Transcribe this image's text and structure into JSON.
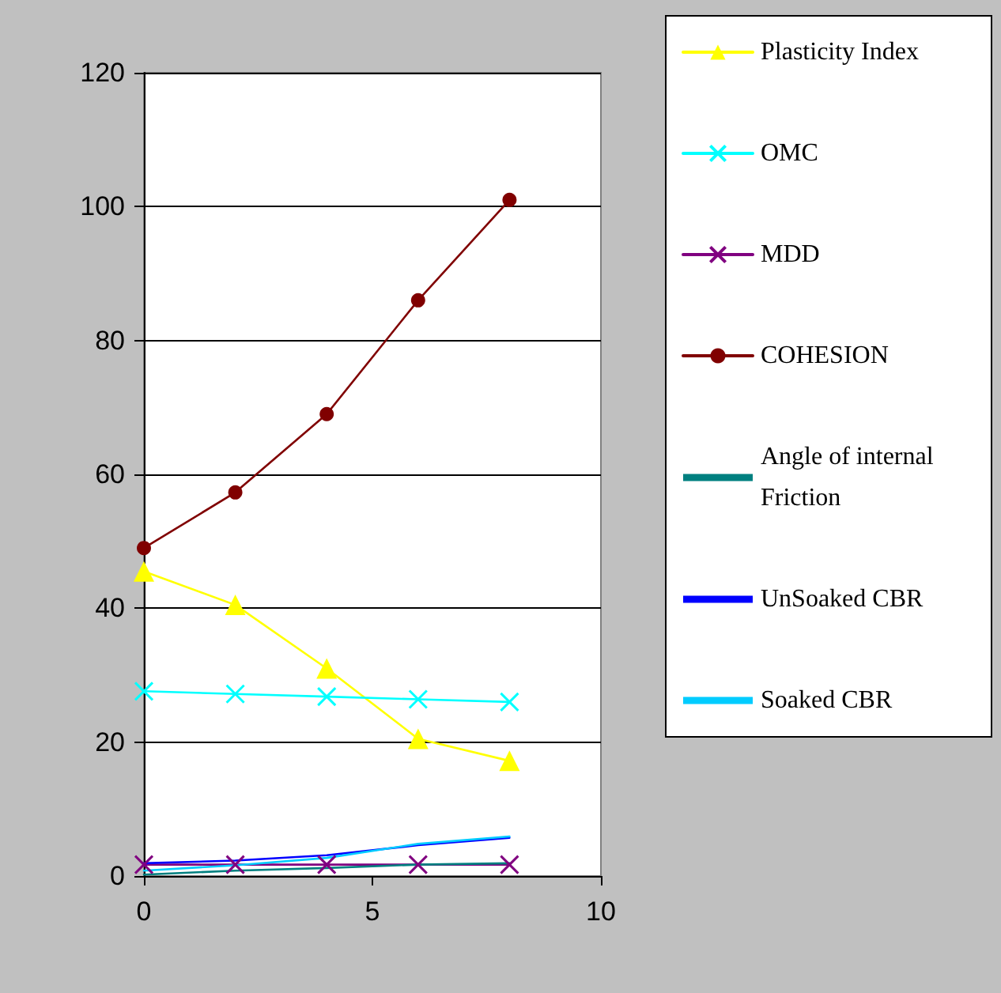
{
  "chart_data": {
    "type": "line",
    "x": [
      0,
      2,
      4,
      6,
      8
    ],
    "series": [
      {
        "name": "Plasticity Index",
        "color": "#ffff00",
        "marker": "triangle",
        "values": [
          45.5,
          40.5,
          31,
          20.5,
          17.2
        ]
      },
      {
        "name": "OMC",
        "color": "#00ffff",
        "marker": "cross",
        "values": [
          27.6,
          27.2,
          26.8,
          26.4,
          26.0
        ]
      },
      {
        "name": "MDD",
        "color": "#800080",
        "marker": "cross",
        "values": [
          1.7,
          1.7,
          1.7,
          1.7,
          1.7
        ]
      },
      {
        "name": "COHESION",
        "color": "#800000",
        "marker": "circle",
        "values": [
          49,
          57.3,
          69,
          86,
          101
        ]
      },
      {
        "name": "Angle of internal Friction",
        "color": "#008080",
        "marker": "none",
        "values": [
          0.2,
          0.8,
          1.2,
          1.7,
          1.9
        ]
      },
      {
        "name": "UnSoaked CBR",
        "color": "#0000ff",
        "marker": "none",
        "values": [
          1.9,
          2.3,
          3.1,
          4.6,
          5.7
        ]
      },
      {
        "name": "Soaked CBR",
        "color": "#00ccff",
        "marker": "none",
        "values": [
          0.8,
          1.6,
          2.7,
          4.8,
          5.9
        ]
      }
    ],
    "xlim": [
      0,
      10
    ],
    "xticks": [
      0,
      5,
      10
    ],
    "ylim": [
      0,
      120
    ],
    "yticks": [
      0,
      20,
      40,
      60,
      80,
      100,
      120
    ],
    "grid": "y",
    "legend": "right"
  }
}
